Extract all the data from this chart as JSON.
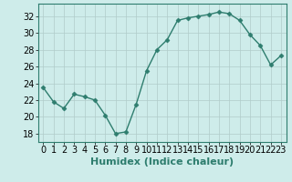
{
  "x": [
    0,
    1,
    2,
    3,
    4,
    5,
    6,
    7,
    8,
    9,
    10,
    11,
    12,
    13,
    14,
    15,
    16,
    17,
    18,
    19,
    20,
    21,
    22,
    23
  ],
  "y": [
    23.5,
    21.8,
    21.0,
    22.7,
    22.4,
    22.0,
    20.2,
    18.0,
    18.2,
    21.5,
    25.5,
    28.0,
    29.2,
    31.5,
    31.8,
    32.0,
    32.2,
    32.5,
    32.3,
    31.5,
    29.8,
    28.5,
    26.2,
    27.3
  ],
  "xlabel": "Humidex (Indice chaleur)",
  "ylim": [
    17.0,
    33.5
  ],
  "xlim": [
    -0.5,
    23.5
  ],
  "yticks": [
    18,
    20,
    22,
    24,
    26,
    28,
    30,
    32
  ],
  "xticks": [
    0,
    1,
    2,
    3,
    4,
    5,
    6,
    7,
    8,
    9,
    10,
    11,
    12,
    13,
    14,
    15,
    16,
    17,
    18,
    19,
    20,
    21,
    22,
    23
  ],
  "line_color": "#2e7d6e",
  "marker": "D",
  "marker_size": 2.5,
  "bg_color": "#ceecea",
  "grid_color": "#b0ccc9",
  "xlabel_fontsize": 8,
  "tick_fontsize": 7
}
